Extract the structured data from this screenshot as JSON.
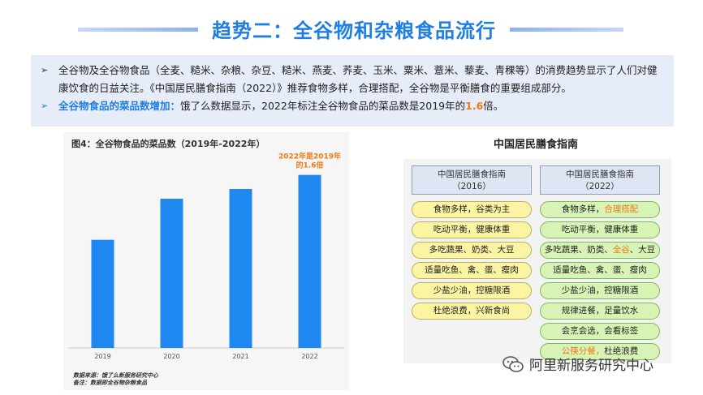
{
  "title": "趋势二：全谷物和杂粮食品流行",
  "intro": {
    "bullet1": "全谷物及全谷物食品（全麦、糙米、杂粮、杂豆、糙米、燕麦、荞麦、玉米、粟米、薏米、藜麦、青稞等）的消费趋势显示了人们对健康饮食的日益关注。《中国居民膳食指南（2022）》推荐食物多样，合理搭配，全谷物是平衡膳食的重要组成部分。",
    "bullet2_head": "全谷物食品的菜品数增加：",
    "bullet2_text": "饿了么数据显示，2022年标注全谷物食品的菜品数是2019年的",
    "bullet2_value": "1.6",
    "bullet2_tail": "倍。"
  },
  "chart": {
    "title": "图4：全谷物食品的菜品数（2019年-2022年）",
    "annotation_line1": "2022年是2019年",
    "annotation_line2": "的1.6倍",
    "source_line1": "数据来源：饿了么新服务研究中心",
    "source_line2": "备注：数据即全谷物杂粮食品",
    "colors": {
      "bar": "#1e88f0",
      "annotation": "#ee7a13"
    }
  },
  "chart_data": {
    "type": "bar",
    "categories": [
      "2019",
      "2020",
      "2021",
      "2022"
    ],
    "values": [
      1.0,
      1.38,
      1.47,
      1.6
    ],
    "title": "图4：全谷物食品的菜品数（2019年-2022年）",
    "xlabel": "",
    "ylabel": "",
    "ylim": [
      0,
      1.8
    ],
    "grid": false
  },
  "guide": {
    "title": "中国居民膳食指南",
    "left_header_line1": "中国居民膳食指南",
    "left_header_line2": "（2016）",
    "right_header_line1": "中国居民膳食指南",
    "right_header_line2": "（2022）",
    "left_items": [
      "食物多样，谷类为主",
      "吃动平衡，健康体重",
      "多吃蔬果、奶类、大豆",
      "适量吃鱼、禽、蛋、瘦肉",
      "少盐少油，控糖限酒",
      "杜绝浪费，兴新食尚"
    ],
    "right_items": {
      "r1a": "食物多样，",
      "r1b": "合理搭配",
      "r2": "吃动平衡，健康体重",
      "r3a": "多吃蔬果、奶类、",
      "r3b": "全谷",
      "r3c": "、大豆",
      "r4": "适量吃鱼、禽、蛋、瘦肉",
      "r5": "少盐少油，控糖限酒",
      "r6": "规律进餐，足量饮水",
      "r7": "会烹会选，会看标签",
      "r8a": "公筷分餐，",
      "r8b": "杜绝浪费"
    }
  },
  "watermark": "阿里新服务研究中心"
}
